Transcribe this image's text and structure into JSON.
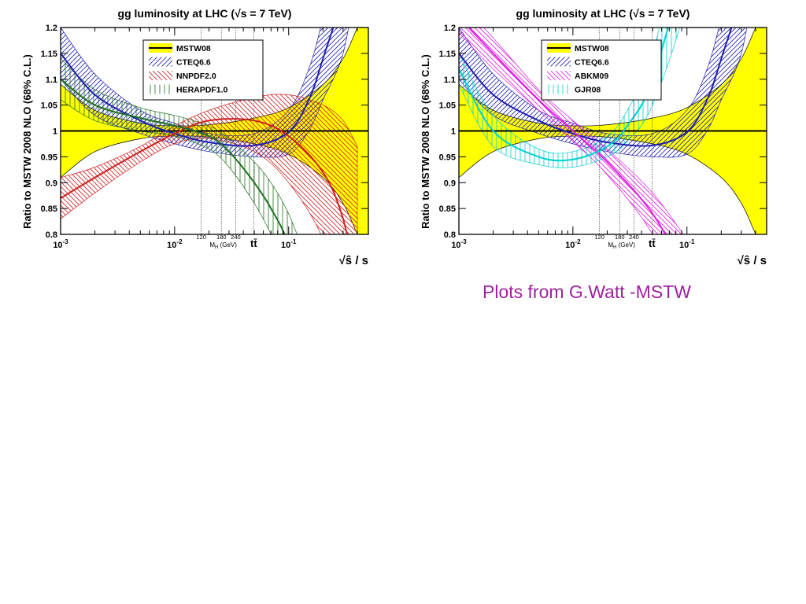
{
  "footer": {
    "credit": "Plots from G.Watt -MSTW",
    "credit_color": "#a020a0"
  },
  "chart_data": [
    {
      "type": "line",
      "title": "gg luminosity at LHC (√s = 7 TeV)",
      "xlabel": "√ŝ / s",
      "ylabel": "Ratio to MSTW 2008 NLO (68% C.L.)",
      "x_scale": "log",
      "xlim": [
        0.001,
        0.5
      ],
      "ylim": [
        0.8,
        1.2
      ],
      "grid": false,
      "legend_position": "top-center",
      "yticks": [
        {
          "v": 0.8,
          "label": "0.8"
        },
        {
          "v": 0.85,
          "label": "0.85"
        },
        {
          "v": 0.9,
          "label": "0.9"
        },
        {
          "v": 0.95,
          "label": "0.95"
        },
        {
          "v": 1.0,
          "label": "1"
        },
        {
          "v": 1.05,
          "label": "1.05"
        },
        {
          "v": 1.1,
          "label": "1.1"
        },
        {
          "v": 1.15,
          "label": "1.15"
        },
        {
          "v": 1.2,
          "label": "1.2"
        }
      ],
      "xticks": [
        {
          "v": 0.001,
          "base": "10",
          "exp": "-3"
        },
        {
          "v": 0.01,
          "base": "10",
          "exp": "-2"
        },
        {
          "v": 0.1,
          "base": "10",
          "exp": "-1"
        }
      ],
      "mass_markers": [
        {
          "x": 0.0171,
          "label": "120"
        },
        {
          "x": 0.0257,
          "label": "180"
        },
        {
          "x": 0.0343,
          "label": "240"
        },
        {
          "x": 0.0494,
          "label": ""
        }
      ],
      "mass_axis_label": "M",
      "mass_axis_sub": "H",
      "mass_axis_unit": "(GeV)",
      "ttbar_label": "tt̄",
      "series": [
        {
          "name": "MSTW08",
          "color": "#000000",
          "fill": "#ffff00",
          "hatch": "solid",
          "x": [
            0.001,
            0.002,
            0.005,
            0.01,
            0.02,
            0.05,
            0.1,
            0.2,
            0.3,
            0.4,
            0.5
          ],
          "central": [
            1,
            1,
            1,
            1,
            1,
            1,
            1,
            1,
            1,
            1,
            1
          ],
          "upper": [
            1.09,
            1.04,
            1.015,
            1.01,
            1.012,
            1.025,
            1.045,
            1.09,
            1.14,
            1.2,
            1.25
          ],
          "lower": [
            0.91,
            0.96,
            0.985,
            0.99,
            0.988,
            0.975,
            0.955,
            0.91,
            0.86,
            0.8,
            0.75
          ]
        },
        {
          "name": "CTEQ6.6",
          "color": "#2020b0",
          "fill": "#2020b0",
          "hatch": "diag-up",
          "x": [
            0.001,
            0.002,
            0.005,
            0.01,
            0.02,
            0.05,
            0.1,
            0.15,
            0.2,
            0.3,
            0.4
          ],
          "central": [
            1.15,
            1.07,
            1.02,
            0.995,
            0.978,
            0.972,
            0.998,
            1.06,
            1.14,
            1.27,
            1.45
          ],
          "upper": [
            1.2,
            1.11,
            1.04,
            1.015,
            0.995,
            0.995,
            1.04,
            1.12,
            1.22,
            1.4,
            1.6
          ],
          "lower": [
            1.1,
            1.03,
            0.995,
            0.975,
            0.96,
            0.95,
            0.955,
            1.0,
            1.06,
            1.15,
            1.3
          ]
        },
        {
          "name": "NNPDF2.0",
          "color": "#d02020",
          "fill": "#d02020",
          "hatch": "diag-down",
          "x": [
            0.001,
            0.002,
            0.005,
            0.01,
            0.02,
            0.05,
            0.1,
            0.2,
            0.3,
            0.4
          ],
          "central": [
            0.87,
            0.91,
            0.96,
            0.995,
            1.02,
            1.02,
            0.99,
            0.92,
            0.83,
            0.7
          ],
          "upper": [
            0.91,
            0.93,
            0.97,
            1.01,
            1.04,
            1.065,
            1.07,
            1.05,
            1.02,
            0.97
          ],
          "lower": [
            0.83,
            0.88,
            0.94,
            0.975,
            0.985,
            0.96,
            0.9,
            0.79,
            0.64,
            0.43
          ]
        },
        {
          "name": "HERAPDF1.0",
          "color": "#207020",
          "fill": "#207020",
          "hatch": "vertical",
          "x": [
            0.001,
            0.002,
            0.005,
            0.01,
            0.02,
            0.03,
            0.05,
            0.07,
            0.1,
            0.15
          ],
          "central": [
            1.1,
            1.05,
            1.025,
            1.01,
            0.99,
            0.96,
            0.9,
            0.85,
            0.78,
            0.64
          ],
          "upper": [
            1.14,
            1.08,
            1.045,
            1.03,
            1.01,
            0.985,
            0.94,
            0.9,
            0.84,
            0.74
          ],
          "lower": [
            1.06,
            1.02,
            1.0,
            0.99,
            0.965,
            0.93,
            0.86,
            0.8,
            0.72,
            0.55
          ]
        }
      ]
    },
    {
      "type": "line",
      "title": "gg luminosity at LHC (√s = 7 TeV)",
      "xlabel": "√ŝ / s",
      "ylabel": "Ratio to MSTW 2008 NLO (68% C.L.)",
      "x_scale": "log",
      "xlim": [
        0.001,
        0.5
      ],
      "ylim": [
        0.8,
        1.2
      ],
      "grid": false,
      "legend_position": "top-center",
      "yticks": [
        {
          "v": 0.8,
          "label": "0.8"
        },
        {
          "v": 0.85,
          "label": "0.85"
        },
        {
          "v": 0.9,
          "label": "0.9"
        },
        {
          "v": 0.95,
          "label": "0.95"
        },
        {
          "v": 1.0,
          "label": "1"
        },
        {
          "v": 1.05,
          "label": "1.05"
        },
        {
          "v": 1.1,
          "label": "1.1"
        },
        {
          "v": 1.15,
          "label": "1.15"
        },
        {
          "v": 1.2,
          "label": "1.2"
        }
      ],
      "xticks": [
        {
          "v": 0.001,
          "base": "10",
          "exp": "-3"
        },
        {
          "v": 0.01,
          "base": "10",
          "exp": "-2"
        },
        {
          "v": 0.1,
          "base": "10",
          "exp": "-1"
        }
      ],
      "mass_markers": [
        {
          "x": 0.0171,
          "label": "120"
        },
        {
          "x": 0.0257,
          "label": "180"
        },
        {
          "x": 0.0343,
          "label": "240"
        },
        {
          "x": 0.0494,
          "label": ""
        }
      ],
      "mass_axis_label": "M",
      "mass_axis_sub": "H",
      "mass_axis_unit": "(GeV)",
      "ttbar_label": "tt̄",
      "series": [
        {
          "name": "MSTW08",
          "color": "#000000",
          "fill": "#ffff00",
          "hatch": "solid",
          "x": [
            0.001,
            0.002,
            0.005,
            0.01,
            0.02,
            0.05,
            0.1,
            0.2,
            0.3,
            0.4,
            0.5
          ],
          "central": [
            1,
            1,
            1,
            1,
            1,
            1,
            1,
            1,
            1,
            1,
            1
          ],
          "upper": [
            1.09,
            1.04,
            1.015,
            1.01,
            1.012,
            1.025,
            1.045,
            1.09,
            1.14,
            1.2,
            1.25
          ],
          "lower": [
            0.91,
            0.96,
            0.985,
            0.99,
            0.988,
            0.975,
            0.955,
            0.91,
            0.86,
            0.8,
            0.75
          ]
        },
        {
          "name": "CTEQ6.6",
          "color": "#2020b0",
          "fill": "#2020b0",
          "hatch": "diag-up",
          "x": [
            0.001,
            0.002,
            0.005,
            0.01,
            0.02,
            0.05,
            0.1,
            0.15,
            0.2,
            0.3,
            0.4
          ],
          "central": [
            1.15,
            1.07,
            1.02,
            0.995,
            0.978,
            0.972,
            0.998,
            1.06,
            1.14,
            1.27,
            1.45
          ],
          "upper": [
            1.2,
            1.11,
            1.04,
            1.015,
            0.995,
            0.995,
            1.04,
            1.12,
            1.22,
            1.4,
            1.6
          ],
          "lower": [
            1.1,
            1.03,
            0.995,
            0.975,
            0.96,
            0.95,
            0.955,
            1.0,
            1.06,
            1.15,
            1.3
          ]
        },
        {
          "name": "ABKM09",
          "color": "#e020e0",
          "fill": "#e020e0",
          "hatch": "diag-down",
          "x": [
            0.001,
            0.002,
            0.005,
            0.01,
            0.02,
            0.05,
            0.1
          ],
          "central": [
            1.22,
            1.15,
            1.06,
            1.0,
            0.94,
            0.84,
            0.72
          ],
          "upper": [
            1.25,
            1.18,
            1.08,
            1.02,
            0.965,
            0.88,
            0.79
          ],
          "lower": [
            1.19,
            1.12,
            1.04,
            0.98,
            0.915,
            0.8,
            0.65
          ]
        },
        {
          "name": "GJR08",
          "color": "#00d0d0",
          "fill": "#00d0d0",
          "hatch": "vertical",
          "x": [
            0.001,
            0.002,
            0.005,
            0.01,
            0.02,
            0.03,
            0.05,
            0.1,
            0.2
          ],
          "central": [
            1.12,
            1.0,
            0.95,
            0.945,
            0.97,
            1.01,
            1.1,
            1.35,
            1.7
          ],
          "upper": [
            1.15,
            1.03,
            0.965,
            0.96,
            0.99,
            1.04,
            1.15,
            1.45,
            1.85
          ],
          "lower": [
            1.09,
            0.97,
            0.935,
            0.93,
            0.95,
            0.98,
            1.05,
            1.25,
            1.55
          ]
        }
      ]
    }
  ]
}
